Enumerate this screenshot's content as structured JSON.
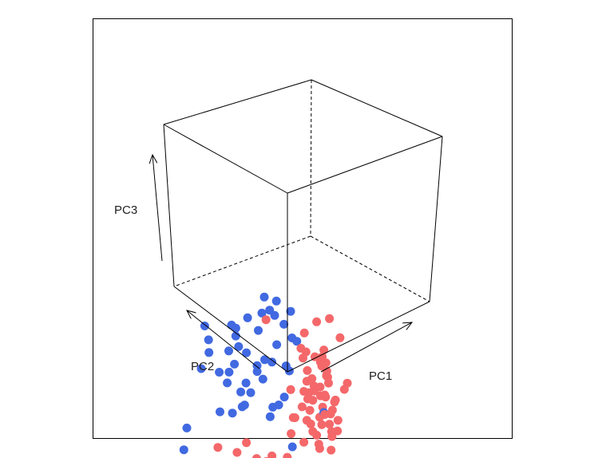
{
  "chart_data": {
    "type": "scatter",
    "projection": "3d-perspective-box",
    "title": "",
    "xlabel": "PC1",
    "ylabel": "PC2",
    "zlabel": "PC3",
    "xlim": [
      -1,
      1
    ],
    "ylim": [
      -1,
      1
    ],
    "zlim": [
      -1,
      1
    ],
    "grid": false,
    "legend": "none",
    "series": [
      {
        "color": "#4169E1",
        "points": [
          [
            -0.47,
            0.14,
            0.81
          ],
          [
            -0.3,
            0.11,
            0.82
          ],
          [
            -0.38,
            0.14,
            0.68
          ],
          [
            -0.14,
            0.14,
            0.6
          ],
          [
            -0.36,
            -0.15,
            0.58
          ],
          [
            -0.6,
            0.9,
            0.63
          ],
          [
            -0.65,
            0.8,
            0.4
          ],
          [
            -0.25,
            0.75,
            0.6
          ],
          [
            -0.1,
            0.55,
            0.67
          ],
          [
            -0.36,
            0.48,
            0.7
          ],
          [
            -0.1,
            0.9,
            0.35
          ],
          [
            -0.31,
            0.8,
            0.4
          ],
          [
            -0.35,
            0.62,
            0.38
          ],
          [
            -0.05,
            0.5,
            0.3
          ],
          [
            -0.35,
            0.28,
            0.7
          ],
          [
            -0.25,
            0.18,
            0.68
          ],
          [
            -0.42,
            0.7,
            0.05
          ],
          [
            -0.6,
            0.95,
            0.1
          ],
          [
            -0.45,
            0.7,
            -0.1
          ],
          [
            -0.1,
            0.75,
            -0.22
          ],
          [
            -0.2,
            0.48,
            0.08
          ],
          [
            -0.65,
            0.4,
            0.42
          ],
          [
            -0.7,
            0.6,
            -0.1
          ],
          [
            -0.4,
            0.85,
            -0.4
          ],
          [
            -0.65,
            0.45,
            -0.65
          ],
          [
            -0.9,
            0.9,
            -0.8
          ],
          [
            -0.1,
            0.28,
            0.4
          ],
          [
            0.3,
            0.4,
            -0.7
          ],
          [
            -0.2,
            -0.1,
            0.28
          ],
          [
            -0.15,
            0.1,
            0.05
          ],
          [
            -0.4,
            0.4,
            -0.3
          ],
          [
            -0.05,
            0.85,
            0.0
          ],
          [
            -0.3,
            0.55,
            0.3
          ],
          [
            -0.7,
            0.75,
            0.2
          ],
          [
            -0.95,
            0.9,
            -1.1
          ],
          [
            -0.2,
            0.25,
            -0.45
          ],
          [
            -0.1,
            0.35,
            0.2
          ],
          [
            -0.55,
            0.55,
            0.55
          ],
          [
            -0.25,
            0.6,
            -0.05
          ],
          [
            0.05,
            0.3,
            -0.2
          ],
          [
            0.1,
            0.55,
            -0.35
          ],
          [
            -0.2,
            0.7,
            -0.3
          ],
          [
            0.15,
            0.7,
            0.2
          ],
          [
            -0.35,
            0.35,
            0.05
          ],
          [
            0.25,
            0.4,
            0.25
          ],
          [
            0.3,
            0.6,
            -0.1
          ],
          [
            0.6,
            0.2,
            -0.2
          ],
          [
            -0.05,
            0.1,
            0.45
          ]
        ]
      },
      {
        "color": "#F4686A",
        "points": [
          [
            0.25,
            0.0,
            0.75
          ],
          [
            0.1,
            0.05,
            0.56
          ],
          [
            -0.2,
            0.35,
            0.7
          ],
          [
            0.3,
            0.2,
            0.45
          ],
          [
            0.4,
            0.05,
            0.38
          ],
          [
            0.1,
            0.1,
            0.38
          ],
          [
            0.45,
            0.1,
            0.3
          ],
          [
            0.25,
            0.2,
            0.35
          ],
          [
            0.35,
            -0.05,
            0.25
          ],
          [
            0.2,
            -0.1,
            0.18
          ],
          [
            0.55,
            0.1,
            0.2
          ],
          [
            0.4,
            0.2,
            0.15
          ],
          [
            0.15,
            0.05,
            0.1
          ],
          [
            0.3,
            -0.1,
            0.05
          ],
          [
            0.45,
            0.0,
            0.05
          ],
          [
            0.6,
            -0.1,
            0.0
          ],
          [
            0.2,
            0.1,
            0.0
          ],
          [
            0.35,
            0.2,
            -0.05
          ],
          [
            0.5,
            0.1,
            -0.05
          ],
          [
            0.25,
            -0.05,
            -0.1
          ],
          [
            0.4,
            0.0,
            -0.15
          ],
          [
            0.55,
            0.0,
            -0.15
          ],
          [
            0.15,
            0.1,
            -0.15
          ],
          [
            0.3,
            0.1,
            -0.2
          ],
          [
            0.45,
            -0.1,
            -0.2
          ],
          [
            0.6,
            0.1,
            -0.25
          ],
          [
            0.2,
            -0.1,
            -0.25
          ],
          [
            0.35,
            0.0,
            -0.3
          ],
          [
            0.5,
            0.1,
            -0.3
          ],
          [
            0.1,
            0.0,
            -0.3
          ],
          [
            0.25,
            0.1,
            -0.35
          ],
          [
            0.4,
            -0.1,
            -0.35
          ],
          [
            0.55,
            -0.05,
            -0.4
          ],
          [
            0.3,
            0.0,
            -0.45
          ],
          [
            0.45,
            0.1,
            -0.45
          ],
          [
            0.6,
            0.0,
            -0.5
          ],
          [
            0.2,
            0.1,
            -0.5
          ],
          [
            0.35,
            -0.1,
            -0.55
          ],
          [
            0.5,
            0.0,
            -0.55
          ],
          [
            0.15,
            0.0,
            -0.6
          ],
          [
            0.3,
            0.1,
            -0.6
          ],
          [
            0.45,
            -0.05,
            -0.65
          ],
          [
            0.25,
            0.0,
            -0.7
          ],
          [
            0.4,
            0.1,
            -0.72
          ],
          [
            0.55,
            0.05,
            -0.75
          ],
          [
            0.15,
            0.1,
            -0.8
          ],
          [
            0.3,
            0.0,
            -0.85
          ],
          [
            0.05,
            0.2,
            -0.7
          ],
          [
            0.0,
            0.1,
            -0.55
          ],
          [
            0.2,
            0.3,
            -0.4
          ],
          [
            0.35,
            0.3,
            -0.2
          ],
          [
            0.1,
            0.25,
            -0.1
          ],
          [
            0.5,
            0.25,
            0.05
          ],
          [
            -0.3,
            0.55,
            -0.85
          ],
          [
            -0.4,
            0.6,
            -1.0
          ],
          [
            -0.3,
            0.4,
            -1.1
          ],
          [
            -0.25,
            0.3,
            -1.15
          ],
          [
            0.1,
            0.3,
            -0.95
          ],
          [
            -0.1,
            0.35,
            -1.0
          ],
          [
            -0.55,
            0.75,
            -0.95
          ],
          [
            0.45,
            0.2,
            0.45
          ],
          [
            0.6,
            0.2,
            0.6
          ],
          [
            0.35,
            -0.1,
            0.8
          ],
          [
            0.7,
            0.05,
            0.75
          ],
          [
            0.65,
            0.2,
            0.35
          ],
          [
            0.55,
            0.3,
            0.15
          ],
          [
            0.65,
            -0.1,
            0.1
          ]
        ]
      }
    ]
  }
}
